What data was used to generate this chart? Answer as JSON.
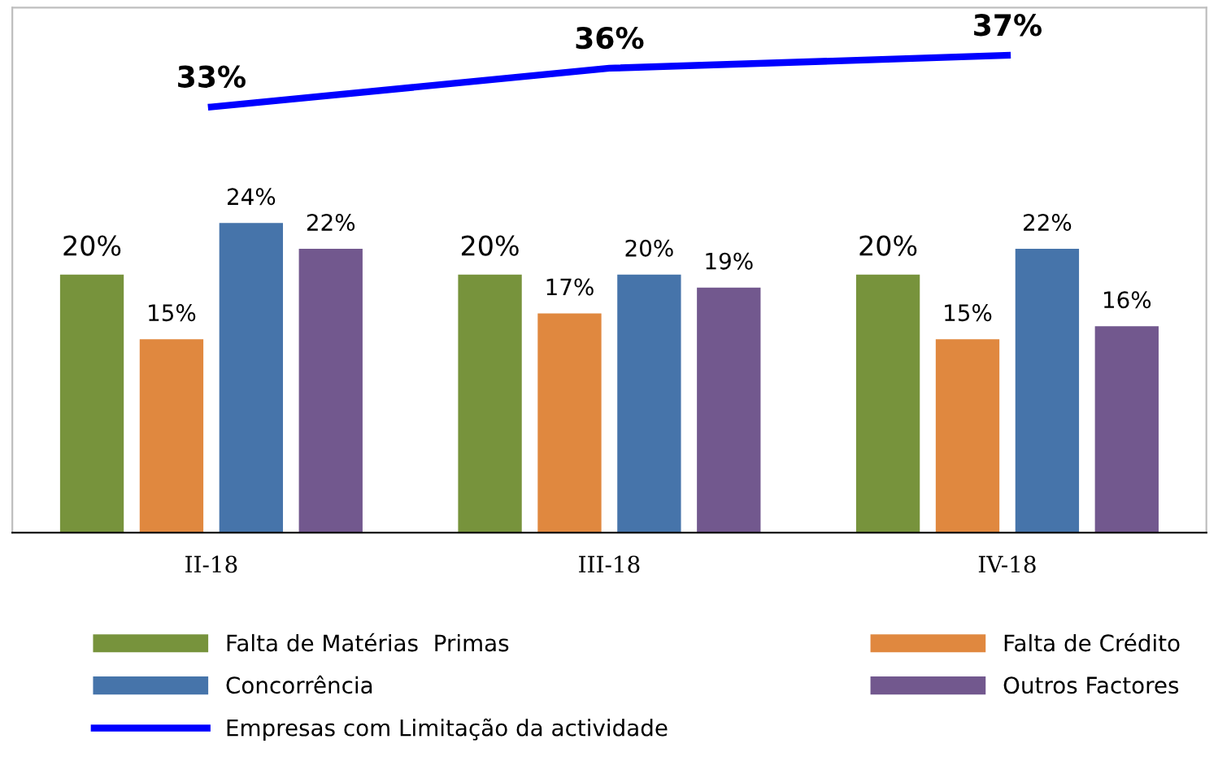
{
  "chart_data": {
    "type": "bar",
    "categories": [
      "II-18",
      "III-18",
      "IV-18"
    ],
    "legend": "bottom",
    "grid": false,
    "series": [
      {
        "name": "Falta de Matérias  Primas",
        "color": "#77933c",
        "values": [
          20,
          20,
          20
        ],
        "value_labels": [
          "20%",
          "20%",
          "20%"
        ]
      },
      {
        "name": "Falta de Crédito",
        "color": "#e0883f",
        "values": [
          15,
          17,
          15
        ],
        "value_labels": [
          "15%",
          "17%",
          "15%"
        ]
      },
      {
        "name": "Concorrência",
        "color": "#4674aa",
        "values": [
          24,
          20,
          22
        ],
        "value_labels": [
          "24%",
          "20%",
          "22%"
        ]
      },
      {
        "name": "Outros Factores",
        "color": "#72588e",
        "values": [
          22,
          19,
          16
        ],
        "value_labels": [
          "22%",
          "19%",
          "16%"
        ]
      },
      {
        "name": "Empresas com Limitação da actividade",
        "type": "line",
        "color": "#0000ff",
        "values": [
          33,
          36,
          37
        ],
        "value_labels": [
          "33%",
          "36%",
          "37%"
        ],
        "marker": "none",
        "line_style": "solid"
      }
    ]
  }
}
